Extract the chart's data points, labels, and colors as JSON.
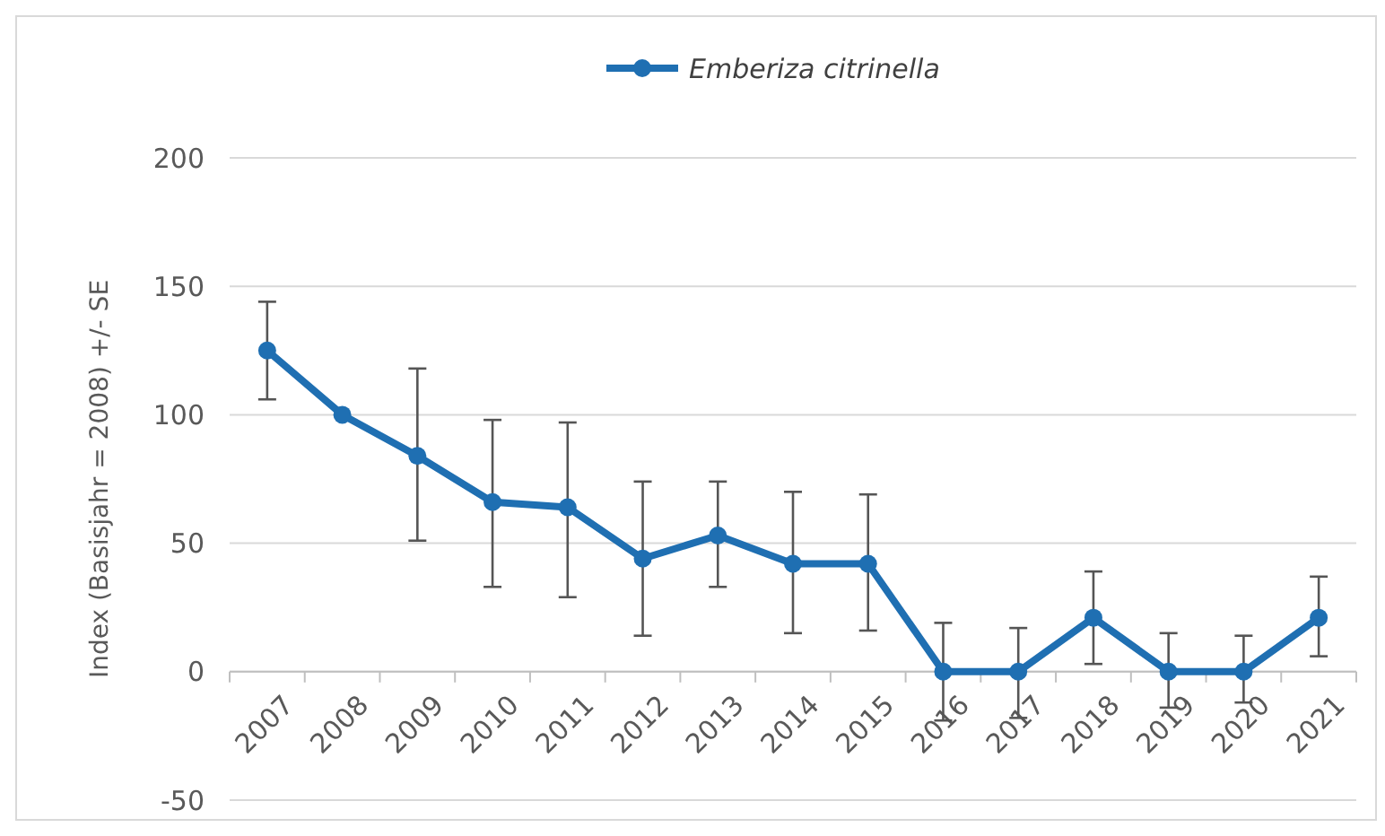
{
  "chart_data": {
    "type": "line",
    "ylabel": "Index (Basisjahr  = 2008) +/- SE",
    "categories": [
      "2007",
      "2008",
      "2009",
      "2010",
      "2011",
      "2012",
      "2013",
      "2014",
      "2015",
      "2016",
      "2017",
      "2018",
      "2019",
      "2020",
      "2021"
    ],
    "series": [
      {
        "name": "Emberiza citrinella",
        "color": "#1f6fb2",
        "values": [
          125,
          100,
          84,
          66,
          64,
          44,
          53,
          42,
          42,
          0,
          0,
          21,
          0,
          0,
          21
        ],
        "errors": [
          [
            106,
            144
          ],
          null,
          [
            51,
            118
          ],
          [
            33,
            98
          ],
          [
            29,
            97
          ],
          [
            14,
            74
          ],
          [
            33,
            74
          ],
          [
            15,
            70
          ],
          [
            16,
            69
          ],
          [
            -19,
            19
          ],
          [
            -18,
            17
          ],
          [
            3,
            39
          ],
          [
            -14,
            15
          ],
          [
            -12,
            14
          ],
          [
            6,
            37
          ]
        ]
      }
    ],
    "ylim": [
      -50,
      200
    ],
    "yticks": [
      -50,
      0,
      50,
      100,
      150,
      200
    ],
    "grid": "y",
    "legend": "top",
    "marker": "circle",
    "line_style": "solid"
  }
}
